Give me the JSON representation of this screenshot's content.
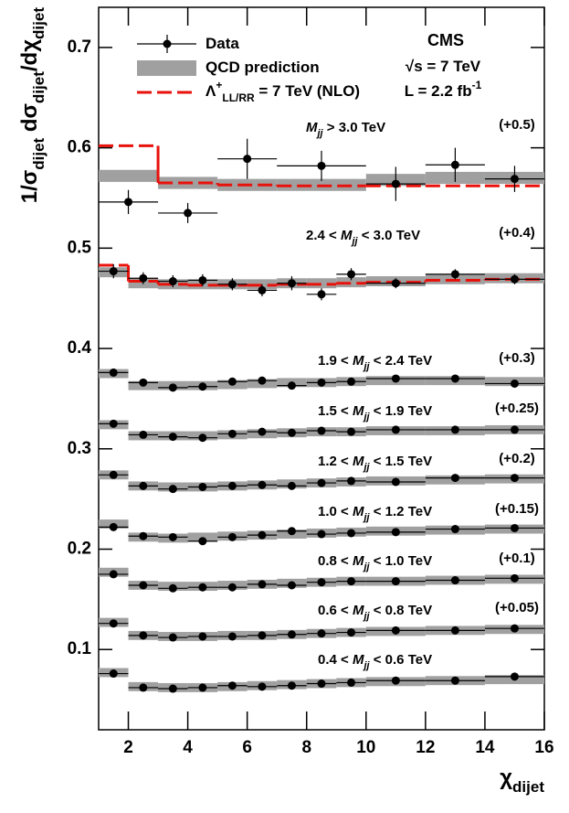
{
  "chart_data": {
    "type": "errorbar",
    "y_title": [
      {
        "text": "1/σ"
      },
      {
        "text": "dijet",
        "shift": "sub"
      },
      {
        "text": " dσ"
      },
      {
        "text": "dijet",
        "shift": "sub"
      },
      {
        "text": "/dχ"
      },
      {
        "text": "dijet",
        "shift": "sub"
      }
    ],
    "x_title": [
      {
        "text": "χ"
      },
      {
        "text": "dijet",
        "shift": "sub"
      }
    ],
    "xlim": [
      1,
      16
    ],
    "xticks": [
      2,
      4,
      6,
      8,
      10,
      12,
      14,
      16
    ],
    "ylim": [
      0.02,
      0.74
    ],
    "yticks": [
      0.1,
      0.2,
      0.3,
      0.4,
      0.5,
      0.6,
      0.7
    ],
    "legend": {
      "data": [
        {
          "text": "Data"
        }
      ],
      "qcd": [
        {
          "text": "QCD prediction"
        }
      ],
      "ci": [
        {
          "text": "Λ"
        },
        {
          "text": "+",
          "shift": "sup"
        },
        {
          "text": "LL/RR",
          "shift": "sub"
        },
        {
          "text": " = 7 TeV (NLO)"
        }
      ]
    },
    "experiment": [
      {
        "text": "CMS"
      }
    ],
    "energy": [
      {
        "text": "√s = 7 TeV"
      }
    ],
    "luminosity": [
      {
        "text": "L = 2.2 fb"
      },
      {
        "text": "-1",
        "shift": "sup"
      }
    ],
    "colors": {
      "data": "#000000",
      "qcd": "#a0a0a0",
      "ci": "#e8120c"
    },
    "series": [
      {
        "label": [
          {
            "text": "M",
            "italic": true
          },
          {
            "text": "jj",
            "shift": "sub",
            "italic": true
          },
          {
            "text": " > 3.0 TeV"
          }
        ],
        "offset": "(+0.5)",
        "bins": [
          1,
          3,
          5,
          7,
          10,
          12,
          14,
          16
        ],
        "values": [
          0.546,
          0.535,
          0.589,
          0.582,
          0.564,
          0.583,
          0.569
        ],
        "errors": [
          0.012,
          0.01,
          0.02,
          0.015,
          0.017,
          0.017,
          0.013
        ],
        "qcd": [
          0.572,
          0.565,
          0.563,
          0.563,
          0.568,
          0.57,
          0.57
        ],
        "qcd_uncertainty": 0.006,
        "ci": [
          0.602,
          0.565,
          0.563,
          0.562,
          0.562,
          0.562,
          0.562
        ]
      },
      {
        "label": [
          {
            "text": "2.4 < "
          },
          {
            "text": "M",
            "italic": true
          },
          {
            "text": "jj",
            "shift": "sub",
            "italic": true
          },
          {
            "text": " < 3.0 TeV"
          }
        ],
        "offset": "(+0.4)",
        "bins": [
          1,
          2,
          3,
          4,
          5,
          6,
          7,
          8,
          9,
          10,
          12,
          14,
          16
        ],
        "values": [
          0.477,
          0.47,
          0.467,
          0.468,
          0.464,
          0.458,
          0.465,
          0.454,
          0.474,
          0.465,
          0.474,
          0.469
        ],
        "errors": [
          0.007,
          0.006,
          0.006,
          0.006,
          0.006,
          0.006,
          0.007,
          0.006,
          0.006,
          0.005,
          0.005,
          0.005
        ],
        "qcd": [
          0.476,
          0.465,
          0.464,
          0.464,
          0.464,
          0.464,
          0.465,
          0.465,
          0.466,
          0.467,
          0.469,
          0.47
        ],
        "qcd_uncertainty": 0.005,
        "ci": [
          0.483,
          0.467,
          0.464,
          0.463,
          0.463,
          0.463,
          0.464,
          0.464,
          0.465,
          0.466,
          0.468,
          0.469
        ]
      },
      {
        "label": [
          {
            "text": "1.9 < "
          },
          {
            "text": "M",
            "italic": true
          },
          {
            "text": "jj",
            "shift": "sub",
            "italic": true
          },
          {
            "text": " < 2.4 TeV"
          }
        ],
        "offset": "(+0.3)",
        "bins": [
          1,
          2,
          3,
          4,
          5,
          6,
          7,
          8,
          9,
          10,
          12,
          14,
          16
        ],
        "values": [
          0.376,
          0.366,
          0.361,
          0.362,
          0.367,
          0.368,
          0.363,
          0.366,
          0.367,
          0.37,
          0.37,
          0.365
        ],
        "errors": [
          0.003,
          0.003,
          0.003,
          0.003,
          0.003,
          0.003,
          0.003,
          0.003,
          0.003,
          0.003,
          0.003,
          0.003
        ],
        "qcd": [
          0.375,
          0.363,
          0.363,
          0.363,
          0.364,
          0.365,
          0.366,
          0.366,
          0.367,
          0.368,
          0.368,
          0.367
        ],
        "qcd_uncertainty": 0.0045
      },
      {
        "label": [
          {
            "text": "1.5 < "
          },
          {
            "text": "M",
            "italic": true
          },
          {
            "text": "jj",
            "shift": "sub",
            "italic": true
          },
          {
            "text": " < 1.9 TeV"
          }
        ],
        "offset": "(+0.25)",
        "bins": [
          1,
          2,
          3,
          4,
          5,
          6,
          7,
          8,
          9,
          10,
          12,
          14,
          16
        ],
        "values": [
          0.325,
          0.314,
          0.312,
          0.311,
          0.315,
          0.317,
          0.316,
          0.318,
          0.317,
          0.319,
          0.319,
          0.319
        ],
        "errors": [
          0.002,
          0.002,
          0.002,
          0.002,
          0.002,
          0.002,
          0.002,
          0.002,
          0.002,
          0.002,
          0.002,
          0.002
        ],
        "qcd": [
          0.324,
          0.313,
          0.313,
          0.313,
          0.314,
          0.315,
          0.316,
          0.317,
          0.317,
          0.318,
          0.318,
          0.319
        ],
        "qcd_uncertainty": 0.0045
      },
      {
        "label": [
          {
            "text": "1.2 < "
          },
          {
            "text": "M",
            "italic": true
          },
          {
            "text": "jj",
            "shift": "sub",
            "italic": true
          },
          {
            "text": " < 1.5 TeV"
          }
        ],
        "offset": "(+0.2)",
        "bins": [
          1,
          2,
          3,
          4,
          5,
          6,
          7,
          8,
          9,
          10,
          12,
          14,
          16
        ],
        "values": [
          0.274,
          0.263,
          0.26,
          0.262,
          0.263,
          0.264,
          0.263,
          0.266,
          0.268,
          0.267,
          0.271,
          0.271
        ],
        "errors": [
          0.002,
          0.002,
          0.002,
          0.002,
          0.002,
          0.002,
          0.002,
          0.002,
          0.002,
          0.002,
          0.002,
          0.002
        ],
        "qcd": [
          0.274,
          0.263,
          0.262,
          0.262,
          0.263,
          0.264,
          0.265,
          0.266,
          0.267,
          0.268,
          0.269,
          0.27
        ],
        "qcd_uncertainty": 0.0045
      },
      {
        "label": [
          {
            "text": "1.0 < "
          },
          {
            "text": "M",
            "italic": true
          },
          {
            "text": "jj",
            "shift": "sub",
            "italic": true
          },
          {
            "text": " < 1.2 TeV"
          }
        ],
        "offset": "(+0.15)",
        "bins": [
          1,
          2,
          3,
          4,
          5,
          6,
          7,
          8,
          9,
          10,
          12,
          14,
          16
        ],
        "values": [
          0.222,
          0.213,
          0.212,
          0.208,
          0.212,
          0.214,
          0.218,
          0.215,
          0.216,
          0.217,
          0.22,
          0.221
        ],
        "errors": [
          0.002,
          0.002,
          0.002,
          0.002,
          0.002,
          0.002,
          0.002,
          0.002,
          0.002,
          0.002,
          0.002,
          0.002
        ],
        "qcd": [
          0.225,
          0.212,
          0.211,
          0.212,
          0.213,
          0.214,
          0.215,
          0.216,
          0.217,
          0.218,
          0.219,
          0.22
        ],
        "qcd_uncertainty": 0.0045
      },
      {
        "label": [
          {
            "text": "0.8 < "
          },
          {
            "text": "M",
            "italic": true
          },
          {
            "text": "jj",
            "shift": "sub",
            "italic": true
          },
          {
            "text": " < 1.0 TeV"
          }
        ],
        "offset": "(+0.1)",
        "bins": [
          1,
          2,
          3,
          4,
          5,
          6,
          7,
          8,
          9,
          10,
          12,
          14,
          16
        ],
        "values": [
          0.175,
          0.164,
          0.161,
          0.162,
          0.162,
          0.165,
          0.164,
          0.167,
          0.168,
          0.168,
          0.169,
          0.171
        ],
        "errors": [
          0.002,
          0.002,
          0.002,
          0.002,
          0.002,
          0.002,
          0.002,
          0.002,
          0.002,
          0.002,
          0.002,
          0.002
        ],
        "qcd": [
          0.177,
          0.164,
          0.163,
          0.163,
          0.164,
          0.165,
          0.166,
          0.167,
          0.168,
          0.168,
          0.169,
          0.17
        ],
        "qcd_uncertainty": 0.0045
      },
      {
        "label": [
          {
            "text": "0.6 < "
          },
          {
            "text": "M",
            "italic": true
          },
          {
            "text": "jj",
            "shift": "sub",
            "italic": true
          },
          {
            "text": " < 0.8 TeV"
          }
        ],
        "offset": "(+0.05)",
        "bins": [
          1,
          2,
          3,
          4,
          5,
          6,
          7,
          8,
          9,
          10,
          12,
          14,
          16
        ],
        "values": [
          0.126,
          0.114,
          0.112,
          0.113,
          0.113,
          0.114,
          0.115,
          0.116,
          0.117,
          0.119,
          0.119,
          0.121
        ],
        "errors": [
          0.002,
          0.002,
          0.002,
          0.002,
          0.002,
          0.002,
          0.002,
          0.002,
          0.002,
          0.002,
          0.002,
          0.002
        ],
        "qcd": [
          0.127,
          0.114,
          0.113,
          0.113,
          0.114,
          0.114,
          0.115,
          0.116,
          0.117,
          0.118,
          0.119,
          0.12
        ],
        "qcd_uncertainty": 0.0045
      },
      {
        "label": [
          {
            "text": "0.4 < "
          },
          {
            "text": "M",
            "italic": true
          },
          {
            "text": "jj",
            "shift": "sub",
            "italic": true
          },
          {
            "text": " < 0.6 TeV"
          }
        ],
        "bins": [
          1,
          2,
          3,
          4,
          5,
          6,
          7,
          8,
          9,
          10,
          12,
          14,
          16
        ],
        "values": [
          0.076,
          0.062,
          0.061,
          0.062,
          0.064,
          0.063,
          0.064,
          0.066,
          0.067,
          0.069,
          0.069,
          0.073
        ],
        "errors": [
          0.002,
          0.002,
          0.002,
          0.002,
          0.002,
          0.002,
          0.002,
          0.002,
          0.002,
          0.002,
          0.002,
          0.002
        ],
        "qcd": [
          0.077,
          0.063,
          0.062,
          0.062,
          0.063,
          0.064,
          0.065,
          0.066,
          0.067,
          0.068,
          0.069,
          0.07
        ],
        "qcd_uncertainty": 0.0045
      }
    ]
  }
}
